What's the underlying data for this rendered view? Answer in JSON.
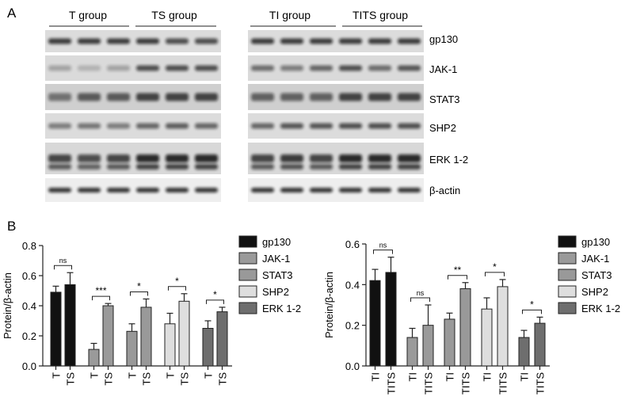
{
  "panels": {
    "a": "A",
    "b": "B"
  },
  "blots": {
    "left_groups": [
      "T group",
      "TS group"
    ],
    "right_groups": [
      "TI group",
      "TITS group"
    ],
    "proteins": [
      "gp130",
      "JAK-1",
      "STAT3",
      "SHP2",
      "ERK 1-2",
      "β-actin"
    ]
  },
  "chart_data": [
    {
      "type": "bar",
      "ylabel": "Protein/β-actin",
      "ylim": [
        0,
        0.8
      ],
      "yticks": [
        "0.0",
        "0.2",
        "0.4",
        "0.6",
        "0.8"
      ],
      "legend_position": "right",
      "groups": [
        {
          "protein": "gp130",
          "color": "#111111",
          "bars": [
            {
              "label": "T",
              "value": 0.49,
              "err": 0.04
            },
            {
              "label": "TS",
              "value": 0.54,
              "err": 0.08
            }
          ],
          "sig": "ns"
        },
        {
          "protein": "JAK-1",
          "color": "#9a9a9a",
          "bars": [
            {
              "label": "T",
              "value": 0.11,
              "err": 0.04
            },
            {
              "label": "TS",
              "value": 0.4,
              "err": 0.015
            }
          ],
          "sig": "***"
        },
        {
          "protein": "STAT3",
          "color": "#999999",
          "bars": [
            {
              "label": "T",
              "value": 0.23,
              "err": 0.05
            },
            {
              "label": "TS",
              "value": 0.39,
              "err": 0.055
            }
          ],
          "sig": "*"
        },
        {
          "protein": "SHP2",
          "color": "#dedede",
          "bars": [
            {
              "label": "T",
              "value": 0.28,
              "err": 0.07
            },
            {
              "label": "TS",
              "value": 0.43,
              "err": 0.05
            }
          ],
          "sig": "*"
        },
        {
          "protein": "ERK 1-2",
          "color": "#6e6e6e",
          "bars": [
            {
              "label": "T",
              "value": 0.25,
              "err": 0.05
            },
            {
              "label": "TS",
              "value": 0.36,
              "err": 0.03
            }
          ],
          "sig": "*"
        }
      ]
    },
    {
      "type": "bar",
      "ylabel": "Protein/β-actin",
      "ylim": [
        0,
        0.6
      ],
      "yticks": [
        "0.0",
        "0.2",
        "0.4",
        "0.6"
      ],
      "legend_position": "right",
      "groups": [
        {
          "protein": "gp130",
          "color": "#111111",
          "bars": [
            {
              "label": "TI",
              "value": 0.42,
              "err": 0.055
            },
            {
              "label": "TITS",
              "value": 0.46,
              "err": 0.075
            }
          ],
          "sig": "ns"
        },
        {
          "protein": "JAK-1",
          "color": "#9a9a9a",
          "bars": [
            {
              "label": "TI",
              "value": 0.14,
              "err": 0.045
            },
            {
              "label": "TITS",
              "value": 0.2,
              "err": 0.1
            }
          ],
          "sig": "ns"
        },
        {
          "protein": "STAT3",
          "color": "#999999",
          "bars": [
            {
              "label": "TI",
              "value": 0.23,
              "err": 0.03
            },
            {
              "label": "TITS",
              "value": 0.38,
              "err": 0.03
            }
          ],
          "sig": "**"
        },
        {
          "protein": "SHP2",
          "color": "#dedede",
          "bars": [
            {
              "label": "TI",
              "value": 0.28,
              "err": 0.055
            },
            {
              "label": "TITS",
              "value": 0.39,
              "err": 0.035
            }
          ],
          "sig": "*"
        },
        {
          "protein": "ERK 1-2",
          "color": "#6e6e6e",
          "bars": [
            {
              "label": "TI",
              "value": 0.14,
              "err": 0.035
            },
            {
              "label": "TITS",
              "value": 0.21,
              "err": 0.03
            }
          ],
          "sig": "*"
        }
      ]
    }
  ]
}
